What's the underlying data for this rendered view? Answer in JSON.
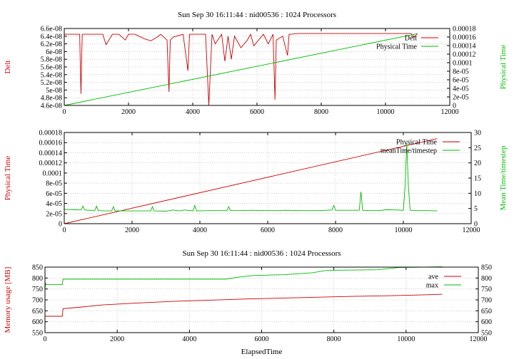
{
  "chart_data": [
    {
      "type": "line",
      "title": "Sun Sep 30 16:11:44 : nid00536 : 1024 Processors",
      "xlabel": "",
      "ylabel": "Delt",
      "y2label": "Physical Time",
      "xlim": [
        0,
        12000
      ],
      "ylim": [
        4.6e-08,
        6.6e-08
      ],
      "y2lim": [
        0,
        0.00018
      ],
      "xticks": [
        "0",
        "2000",
        "4000",
        "6000",
        "8000",
        "10000",
        "12000"
      ],
      "yticks": [
        "4.6e-08",
        "4.8e-08",
        "5e-08",
        "5.2e-08",
        "5.4e-08",
        "5.6e-08",
        "5.8e-08",
        "6e-08",
        "6.2e-08",
        "6.4e-08",
        "6.6e-08"
      ],
      "y2ticks": [
        "0",
        "2e-05",
        "4e-05",
        "6e-05",
        "8e-05",
        "0.0001",
        "0.00012",
        "0.00014",
        "0.00016",
        "0.00018"
      ],
      "grid": true,
      "legend_position": "top-right",
      "series": [
        {
          "name": "Delt",
          "color": "#cc0000",
          "axis": "left",
          "x": [
            0,
            200,
            480,
            520,
            560,
            700,
            1200,
            1300,
            1500,
            1700,
            1900,
            2000,
            2200,
            2500,
            2700,
            2900,
            3000,
            3200,
            3260,
            3300,
            3400,
            3700,
            3850,
            3900,
            4000,
            4400,
            4500,
            4600,
            4700,
            4900,
            5000,
            5100,
            5200,
            5300,
            5500,
            5700,
            5800,
            5900,
            6050,
            6200,
            6350,
            6500,
            6560,
            6600,
            6800,
            6950,
            7000,
            7050,
            7300,
            8000,
            9000,
            10000,
            10500,
            10800,
            10850,
            10900,
            11000
          ],
          "y": [
            6.45e-08,
            6.45e-08,
            6.45e-08,
            4.9e-08,
            6.45e-08,
            6.45e-08,
            6.45e-08,
            6.18e-08,
            6.45e-08,
            6.45e-08,
            6.3e-08,
            6.45e-08,
            6.45e-08,
            6.33e-08,
            6.28e-08,
            6.38e-08,
            6.45e-08,
            6.3e-08,
            4.95e-08,
            6.3e-08,
            6.38e-08,
            6.45e-08,
            5.5e-08,
            6.45e-08,
            6.45e-08,
            6.45e-08,
            4.6e-08,
            6.45e-08,
            6.2e-08,
            6.45e-08,
            5.75e-08,
            6.4e-08,
            5.8e-08,
            6.4e-08,
            6.1e-08,
            6.3e-08,
            6.45e-08,
            6.15e-08,
            6.3e-08,
            6.45e-08,
            6.2e-08,
            6.45e-08,
            4.75e-08,
            6.3e-08,
            6.4e-08,
            5.9e-08,
            6.45e-08,
            6.45e-08,
            6.47e-08,
            6.47e-08,
            6.47e-08,
            6.47e-08,
            6.47e-08,
            6.47e-08,
            6.38e-08,
            6.38e-08,
            6.47e-08
          ]
        },
        {
          "name": "Physical Time",
          "color": "#00bb00",
          "axis": "right",
          "x": [
            0,
            11000
          ],
          "y": [
            0,
            0.000168
          ]
        }
      ]
    },
    {
      "type": "line",
      "title": "",
      "xlabel": "",
      "ylabel": "Physical Time",
      "y2label": "Mean Time/timestep",
      "xlim": [
        0,
        12000
      ],
      "ylim": [
        0,
        0.00018
      ],
      "y2lim": [
        0,
        30
      ],
      "xticks": [
        "0",
        "2000",
        "4000",
        "6000",
        "8000",
        "10000",
        "12000"
      ],
      "yticks": [
        "0",
        "2e-05",
        "4e-05",
        "6e-05",
        "8e-05",
        "0.0001",
        "0.00012",
        "0.00014",
        "0.00016",
        "0.00018"
      ],
      "y2ticks": [
        "0",
        "5",
        "10",
        "15",
        "20",
        "25",
        "30"
      ],
      "grid": true,
      "legend_position": "top-right",
      "series": [
        {
          "name": "Physical Time",
          "color": "#cc0000",
          "axis": "left",
          "x": [
            0,
            11000
          ],
          "y": [
            0,
            0.000168
          ]
        },
        {
          "name": "meanTime/timestep",
          "color": "#00bb00",
          "axis": "right",
          "x": [
            0,
            300,
            500,
            550,
            600,
            900,
            950,
            1000,
            1200,
            1400,
            1450,
            1500,
            1800,
            2000,
            2300,
            2550,
            2600,
            2650,
            3000,
            3200,
            3400,
            3550,
            3800,
            3850,
            3900,
            4300,
            4500,
            4800,
            4850,
            4900,
            5200,
            5500,
            6000,
            6300,
            6500,
            7000,
            7500,
            7900,
            7950,
            8000,
            8500,
            8700,
            8750,
            8800,
            9000,
            9300,
            9500,
            9800,
            10000,
            10050,
            10100,
            10150,
            10200,
            10400,
            10700,
            11000
          ],
          "y": [
            4.7,
            4.6,
            4.5,
            5.8,
            4.5,
            4.3,
            5.8,
            4.3,
            4.2,
            4.2,
            5.6,
            4.2,
            4.2,
            4.2,
            4.2,
            4.2,
            5.6,
            4.2,
            4.1,
            4.5,
            4.2,
            4.5,
            4.2,
            6.0,
            4.2,
            4.3,
            4.3,
            4.3,
            5.6,
            4.3,
            4.3,
            4.4,
            4.3,
            4.3,
            4.4,
            4.3,
            4.3,
            4.5,
            6.0,
            4.4,
            4.4,
            4.4,
            10.5,
            4.4,
            4.3,
            4.3,
            4.6,
            4.5,
            4.4,
            12.0,
            26.5,
            12.0,
            4.4,
            4.3,
            4.3,
            4.2
          ]
        }
      ]
    },
    {
      "type": "line",
      "title": "Sun Sep 30 16:11:44 : nid00536 : 1024 Processors",
      "xlabel": "ElapsedTime",
      "ylabel": "Memory usage [MB]",
      "y2label": "",
      "xlim": [
        0,
        12000
      ],
      "ylim": [
        550,
        850
      ],
      "y2lim": [
        550,
        850
      ],
      "xticks": [
        "0",
        "2000",
        "4000",
        "6000",
        "8000",
        "10000",
        "12000"
      ],
      "yticks": [
        "550",
        "600",
        "650",
        "700",
        "750",
        "800",
        "850"
      ],
      "y2ticks": [
        "550",
        "600",
        "650",
        "700",
        "750",
        "800",
        "850"
      ],
      "grid": true,
      "legend_position": "right",
      "series": [
        {
          "name": "ave",
          "color": "#cc0000",
          "axis": "left",
          "x": [
            0,
            480,
            500,
            1000,
            1600,
            2500,
            3500,
            4500,
            5500,
            6500,
            7500,
            8500,
            9500,
            10500,
            11000
          ],
          "y": [
            625,
            625,
            660,
            667,
            677,
            685,
            693,
            698,
            704,
            708,
            712,
            716,
            719,
            723,
            726
          ]
        },
        {
          "name": "max",
          "color": "#00bb00",
          "axis": "left",
          "x": [
            0,
            20,
            40,
            480,
            500,
            5000,
            5400,
            5800,
            6600,
            7400,
            7800,
            9200,
            9800,
            10500,
            11000
          ],
          "y": [
            750,
            775,
            770,
            770,
            795,
            795,
            805,
            812,
            815,
            824,
            835,
            838,
            848,
            850,
            852
          ]
        }
      ]
    }
  ]
}
